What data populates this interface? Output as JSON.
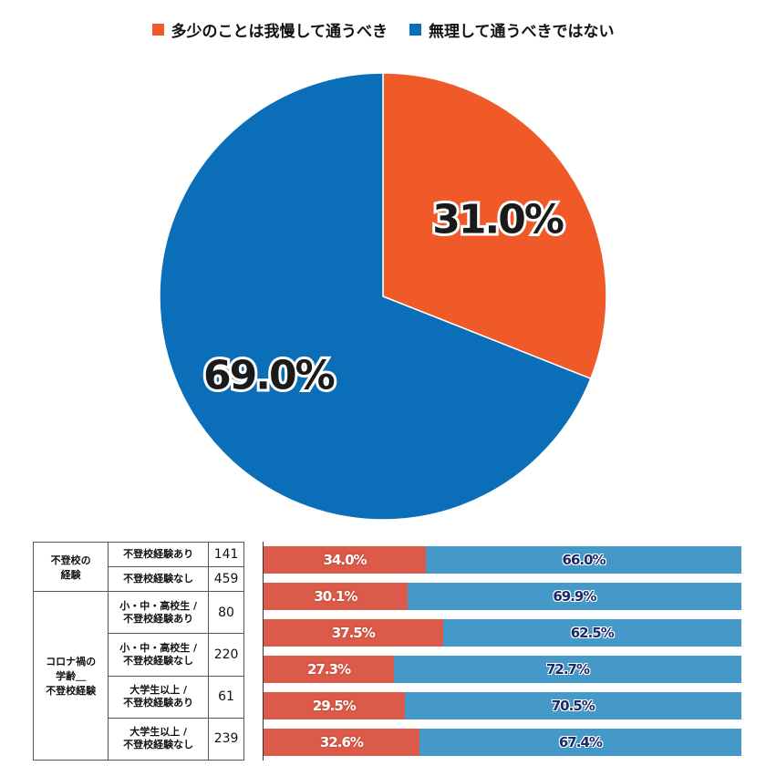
{
  "chart_data": [
    {
      "type": "pie",
      "categories": [
        "多少のことは我慢して通うべき",
        "無理して通うべきではない"
      ],
      "values": [
        31.0,
        69.0
      ],
      "value_labels": [
        "31.0%",
        "69.0%"
      ],
      "colors": [
        "#f05a28",
        "#0a6eb8"
      ],
      "legend": "top"
    },
    {
      "type": "bar",
      "orientation": "horizontal-stacked-100",
      "colors": [
        "#dc5a49",
        "#4499c8"
      ],
      "groups": [
        {
          "label_lines": [
            "不登校の",
            "経験"
          ],
          "rows": [
            0,
            1
          ]
        },
        {
          "label_lines": [
            "コロナ禍の",
            "学齢＿",
            "不登校経験"
          ],
          "rows": [
            2,
            3,
            4,
            5
          ]
        }
      ],
      "rows": [
        {
          "category_lines": [
            "不登校経験あり"
          ],
          "n": "141",
          "values": [
            34.0,
            66.0
          ],
          "labels": [
            "34.0%",
            "66.0%"
          ]
        },
        {
          "category_lines": [
            "不登校経験なし"
          ],
          "n": "459",
          "values": [
            30.1,
            69.9
          ],
          "labels": [
            "30.1%",
            "69.9%"
          ]
        },
        {
          "category_lines": [
            "小・中・高校生 /",
            "不登校経験あり"
          ],
          "n": "80",
          "values": [
            37.5,
            62.5
          ],
          "labels": [
            "37.5%",
            "62.5%"
          ]
        },
        {
          "category_lines": [
            "小・中・高校生 /",
            "不登校経験なし"
          ],
          "n": "220",
          "values": [
            27.3,
            72.7
          ],
          "labels": [
            "27.3%",
            "72.7%"
          ]
        },
        {
          "category_lines": [
            "大学生以上 /",
            "不登校経験あり"
          ],
          "n": "61",
          "values": [
            29.5,
            70.5
          ],
          "labels": [
            "29.5%",
            "70.5%"
          ]
        },
        {
          "category_lines": [
            "大学生以上 /",
            "不登校経験なし"
          ],
          "n": "239",
          "values": [
            32.6,
            67.4
          ],
          "labels": [
            "32.6%",
            "67.4%"
          ]
        }
      ]
    }
  ]
}
